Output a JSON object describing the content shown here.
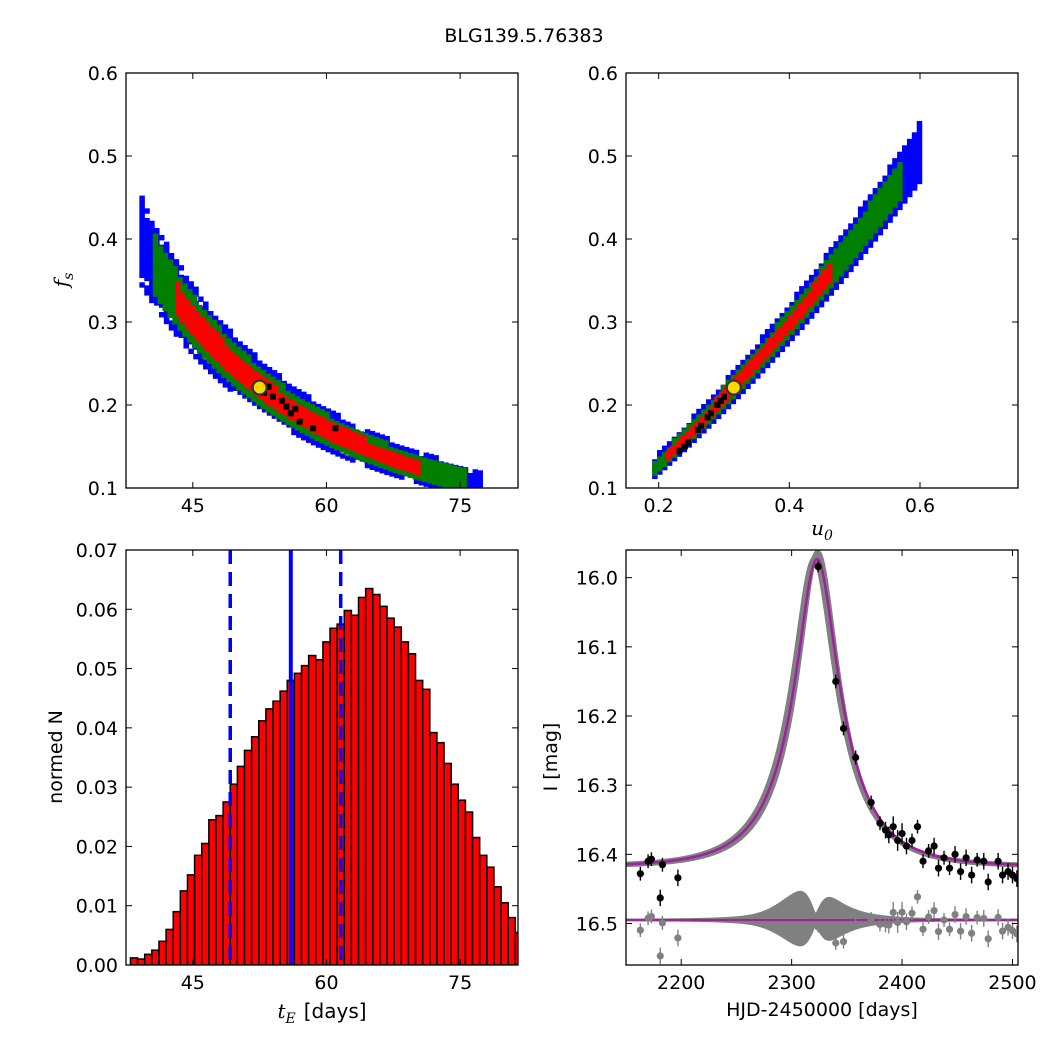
{
  "figure": {
    "title": "BLG139.5.76383"
  },
  "chart_data": [
    {
      "id": "fs-vs-tE",
      "type": "heatmap",
      "xlabel": "",
      "ylabel": "f",
      "ylabel_sub": "s",
      "xlim": [
        37.5,
        81.5
      ],
      "ylim": [
        0.1,
        0.6
      ],
      "xticks": [
        45,
        60,
        75
      ],
      "yticks": [
        0.1,
        0.2,
        0.3,
        0.4,
        0.5,
        0.6
      ],
      "levels": [
        {
          "name": "3-sigma",
          "color": "#0000ff"
        },
        {
          "name": "2-sigma",
          "color": "#007f00"
        },
        {
          "name": "1-sigma",
          "color": "#ff0000"
        }
      ],
      "best_fit": {
        "x": 52.5,
        "y": 0.221
      },
      "black_points": [
        [
          53,
          0.215
        ],
        [
          54,
          0.21
        ],
        [
          55,
          0.205
        ],
        [
          55.5,
          0.198
        ],
        [
          56.5,
          0.195
        ],
        [
          56,
          0.19
        ],
        [
          57,
          0.18
        ],
        [
          58.5,
          0.172
        ],
        [
          61,
          0.172
        ],
        [
          53.5,
          0.222
        ]
      ]
    },
    {
      "id": "fs-vs-u0",
      "type": "heatmap",
      "xlabel": "u",
      "xlabel_sub": "0",
      "ylabel": "",
      "xlim": [
        0.15,
        0.75
      ],
      "ylim": [
        0.1,
        0.6
      ],
      "xticks": [
        0.2,
        0.4,
        0.6
      ],
      "yticks": [
        0.1,
        0.2,
        0.3,
        0.4,
        0.5,
        0.6
      ],
      "best_fit": {
        "x": 0.315,
        "y": 0.221
      },
      "black_points": [
        [
          0.26,
          0.17
        ],
        [
          0.265,
          0.175
        ],
        [
          0.275,
          0.185
        ],
        [
          0.28,
          0.19
        ],
        [
          0.29,
          0.2
        ],
        [
          0.295,
          0.205
        ],
        [
          0.3,
          0.21
        ],
        [
          0.24,
          0.15
        ],
        [
          0.245,
          0.155
        ],
        [
          0.232,
          0.145
        ]
      ]
    },
    {
      "id": "tE-histogram",
      "type": "bar",
      "xlabel_math": "t",
      "xlabel_sub": "E",
      "xlabel": "[days]",
      "ylabel": "normed N",
      "xlim": [
        37.5,
        81.5
      ],
      "ylim": [
        0.0,
        0.07
      ],
      "xticks": [
        45,
        60,
        75
      ],
      "yticks": [
        0.0,
        0.01,
        0.02,
        0.03,
        0.04,
        0.05,
        0.06,
        0.07
      ],
      "bin_start": 38.0,
      "bin_width": 0.8,
      "values": [
        0.0012,
        0.001,
        0.0018,
        0.0025,
        0.004,
        0.006,
        0.009,
        0.0125,
        0.0152,
        0.0185,
        0.0205,
        0.0245,
        0.0252,
        0.0275,
        0.0305,
        0.0335,
        0.0362,
        0.0385,
        0.0412,
        0.0432,
        0.0445,
        0.0462,
        0.048,
        0.0492,
        0.0505,
        0.0522,
        0.0515,
        0.0545,
        0.0568,
        0.0575,
        0.0598,
        0.059,
        0.062,
        0.0635,
        0.0625,
        0.0605,
        0.0585,
        0.057,
        0.0545,
        0.0525,
        0.048,
        0.0465,
        0.0392,
        0.0375,
        0.034,
        0.0305,
        0.0278,
        0.0258,
        0.0215,
        0.0185,
        0.0165,
        0.0132,
        0.0105,
        0.008,
        0.0055,
        0.004,
        0.0032,
        0.0025,
        0.0018,
        0.0012,
        0.0008,
        0.0007,
        0.0006
      ],
      "median": 56.0,
      "lower": 49.2,
      "upper": 61.6
    },
    {
      "id": "light-curve",
      "type": "scatter",
      "xlabel": "HJD-2450000 [days]",
      "ylabel": "I [mag]",
      "xlim": [
        2150,
        2505
      ],
      "ylim": [
        16.56,
        15.96
      ],
      "xticks": [
        2200,
        2300,
        2400,
        2500
      ],
      "yticks": [
        16.0,
        16.1,
        16.2,
        16.3,
        16.4,
        16.5
      ],
      "model": {
        "t0": 2323,
        "u0": 0.315,
        "tE": 56,
        "baseline": 16.418,
        "blend_fs": 0.221
      },
      "residual_offset": 16.495,
      "series": [
        {
          "name": "",
          "color": "#000000",
          "points": [
            [
              2163,
              16.428,
              0.01
            ],
            [
              2170,
              16.41,
              0.01
            ],
            [
              2173,
              16.407,
              0.01
            ],
            [
              2181,
              16.463,
              0.012
            ],
            [
              2183,
              16.415,
              0.01
            ],
            [
              2197,
              16.434,
              0.012
            ],
            [
              2324,
              15.984,
              0.008
            ],
            [
              2340,
              16.15,
              0.01
            ],
            [
              2347,
              16.218,
              0.01
            ],
            [
              2358,
              16.26,
              0.01
            ],
            [
              2372,
              16.325,
              0.01
            ],
            [
              2380,
              16.355,
              0.01
            ],
            [
              2385,
              16.365,
              0.012
            ],
            [
              2388,
              16.372,
              0.012
            ],
            [
              2392,
              16.36,
              0.015
            ],
            [
              2396,
              16.38,
              0.015
            ],
            [
              2400,
              16.37,
              0.015
            ],
            [
              2404,
              16.388,
              0.012
            ],
            [
              2409,
              16.38,
              0.01
            ],
            [
              2414,
              16.36,
              0.01
            ],
            [
              2419,
              16.41,
              0.01
            ],
            [
              2424,
              16.395,
              0.01
            ],
            [
              2429,
              16.388,
              0.012
            ],
            [
              2433,
              16.42,
              0.012
            ],
            [
              2438,
              16.405,
              0.01
            ],
            [
              2443,
              16.42,
              0.01
            ],
            [
              2448,
              16.4,
              0.012
            ],
            [
              2453,
              16.425,
              0.012
            ],
            [
              2458,
              16.405,
              0.012
            ],
            [
              2463,
              16.43,
              0.012
            ],
            [
              2468,
              16.408,
              0.01
            ],
            [
              2474,
              16.41,
              0.012
            ],
            [
              2478,
              16.44,
              0.012
            ],
            [
              2487,
              16.41,
              0.012
            ],
            [
              2491,
              16.43,
              0.012
            ],
            [
              2496,
              16.425,
              0.012
            ],
            [
              2500,
              16.43,
              0.012
            ],
            [
              2504,
              16.435,
              0.012
            ]
          ]
        }
      ]
    }
  ]
}
